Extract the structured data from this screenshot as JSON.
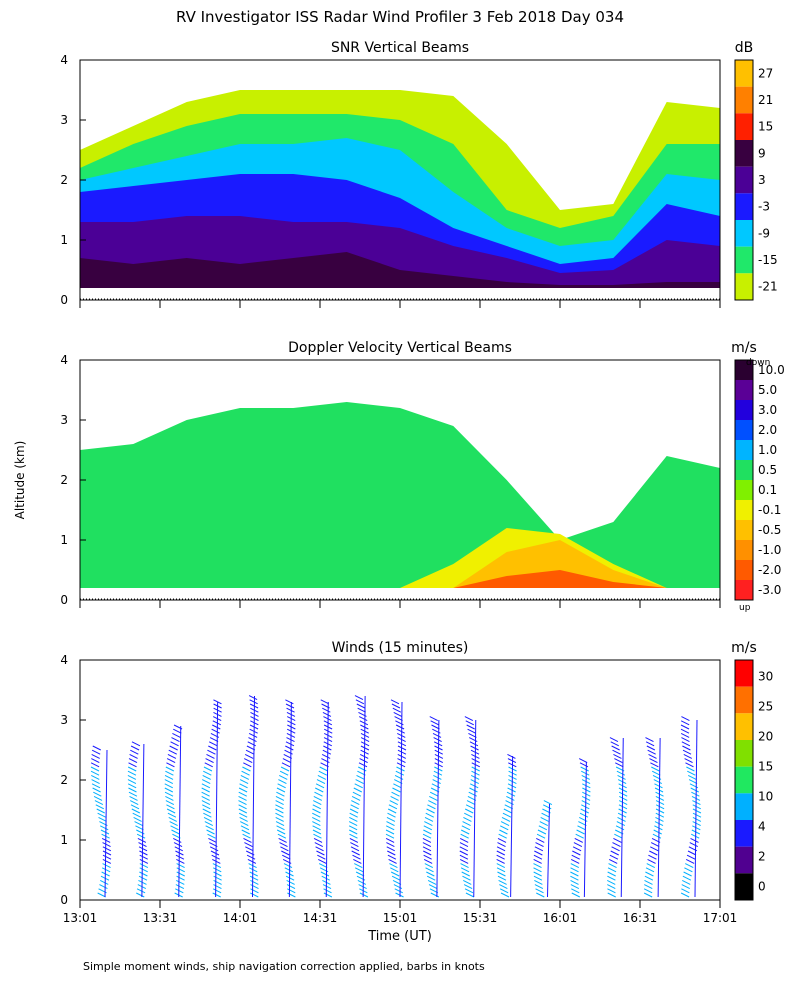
{
  "title": "RV Investigator ISS Radar Wind Profiler   3 Feb 2018 Day 034",
  "footer": "Simple moment winds, ship navigation correction applied, barbs in knots",
  "chart_data": [
    {
      "type": "heatmap",
      "title": "SNR Vertical Beams",
      "ylabel": "",
      "yticks": [
        "0",
        "1",
        "2",
        "3",
        "4"
      ],
      "ylim": [
        0,
        4
      ],
      "x_tick_count": 9,
      "colorbar": {
        "unit": "dB",
        "labels": [
          "27",
          "21",
          "15",
          "9",
          "3",
          "-3",
          "-9",
          "-15",
          "-21"
        ],
        "colors": [
          "#ffc000",
          "#ff8000",
          "#ff2000",
          "#380040",
          "#4b0096",
          "#1a1aff",
          "#00c8ff",
          "#20e86a",
          "#c8f000"
        ]
      },
      "series": [
        {
          "name": "-21",
          "color": "#c8f000",
          "top_km": [
            2.5,
            2.9,
            3.3,
            3.5,
            3.5,
            3.5,
            3.5,
            3.4,
            2.6,
            1.5,
            1.6,
            3.3,
            3.2
          ]
        },
        {
          "name": "-15",
          "color": "#20e86a",
          "top_km": [
            2.2,
            2.6,
            2.9,
            3.1,
            3.1,
            3.1,
            3.0,
            2.6,
            1.5,
            1.2,
            1.4,
            2.6,
            2.6
          ]
        },
        {
          "name": "-9",
          "color": "#00c8ff",
          "top_km": [
            2.0,
            2.2,
            2.4,
            2.6,
            2.6,
            2.7,
            2.5,
            1.8,
            1.2,
            0.9,
            1.0,
            2.1,
            2.0
          ]
        },
        {
          "name": "-3",
          "color": "#1a1aff",
          "top_km": [
            1.8,
            1.9,
            2.0,
            2.1,
            2.1,
            2.0,
            1.7,
            1.2,
            0.9,
            0.6,
            0.7,
            1.6,
            1.4
          ]
        },
        {
          "name": "3",
          "color": "#4b0096",
          "top_km": [
            1.3,
            1.3,
            1.4,
            1.4,
            1.3,
            1.3,
            1.2,
            0.9,
            0.7,
            0.45,
            0.5,
            1.0,
            0.9
          ]
        },
        {
          "name": "9",
          "color": "#380040",
          "top_km": [
            0.7,
            0.6,
            0.7,
            0.6,
            0.7,
            0.8,
            0.5,
            0.4,
            0.3,
            0.25,
            0.25,
            0.3,
            0.3
          ]
        }
      ]
    },
    {
      "type": "heatmap",
      "title": "Doppler Velocity Vertical Beams",
      "ylabel": "Altitude (km)",
      "yticks": [
        "0",
        "1",
        "2",
        "3",
        "4"
      ],
      "ylim": [
        0,
        4
      ],
      "x_tick_count": 9,
      "colorbar": {
        "unit": "m/s",
        "top_note": "down",
        "bottom_note": "up",
        "labels": [
          "10.0",
          "5.0",
          "3.0",
          "2.0",
          "1.0",
          "0.5",
          "0.1",
          "-0.1",
          "-0.5",
          "-1.0",
          "-2.0",
          "-3.0"
        ],
        "colors": [
          "#2a0030",
          "#5a0096",
          "#2200dd",
          "#0050ff",
          "#00b4ff",
          "#20e060",
          "#80f000",
          "#f0f000",
          "#ffc000",
          "#ff9000",
          "#ff5a00",
          "#ff2020"
        ]
      },
      "series": [
        {
          "name": "0.5",
          "color": "#20e060",
          "top_km": [
            2.5,
            2.6,
            3.0,
            3.2,
            3.2,
            3.3,
            3.2,
            2.9,
            2.0,
            1.0,
            1.3,
            2.4,
            2.2
          ]
        },
        {
          "name": "-0.1",
          "color": "#f0f000",
          "top_km": [
            0,
            0,
            0,
            0,
            0,
            0,
            0,
            0.6,
            1.2,
            1.1,
            0.6,
            0,
            0
          ]
        },
        {
          "name": "-0.5",
          "color": "#ffc000",
          "top_km": [
            0,
            0,
            0,
            0,
            0,
            0,
            0,
            0.2,
            0.8,
            1.0,
            0.5,
            0,
            0
          ]
        },
        {
          "name": "-2.0",
          "color": "#ff5a00",
          "top_km": [
            0,
            0,
            0,
            0,
            0,
            0,
            0,
            0,
            0.4,
            0.5,
            0.3,
            0,
            0
          ]
        }
      ]
    },
    {
      "type": "scatter",
      "title": "Winds (15 minutes)",
      "ylabel": "",
      "xlabel": "Time (UT)",
      "xticks": [
        "13:01",
        "13:31",
        "14:01",
        "14:31",
        "15:01",
        "15:31",
        "16:01",
        "16:31",
        "17:01"
      ],
      "yticks": [
        "0",
        "1",
        "2",
        "3",
        "4"
      ],
      "ylim": [
        0,
        4
      ],
      "colorbar": {
        "unit": "m/s",
        "labels": [
          "30",
          "25",
          "20",
          "15",
          "10",
          "4",
          "2",
          "0"
        ],
        "colors": [
          "#ff0000",
          "#ff7000",
          "#ffc000",
          "#80e000",
          "#20e860",
          "#00b0ff",
          "#1a1aff",
          "#500090",
          "#000000"
        ]
      },
      "profiles_top_km": [
        2.5,
        2.6,
        2.9,
        3.3,
        3.4,
        3.3,
        3.3,
        3.4,
        3.3,
        3.0,
        3.0,
        2.4,
        1.6,
        2.3,
        2.7,
        2.7,
        3.0
      ]
    }
  ]
}
